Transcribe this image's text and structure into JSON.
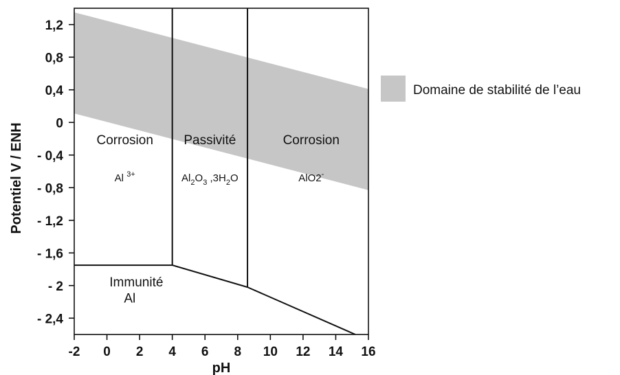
{
  "chart_data": {
    "type": "area",
    "xlabel": "pH",
    "ylabel": "Potentiel V / ENH",
    "xlim": [
      -2,
      16
    ],
    "ylim": [
      -2.6,
      1.4
    ],
    "x_ticks": [
      -2,
      0,
      2,
      4,
      6,
      8,
      10,
      12,
      14,
      16
    ],
    "x_tick_labels": [
      "-2",
      "0",
      "2",
      "4",
      "6",
      "8",
      "10",
      "12",
      "14",
      "16"
    ],
    "y_ticks": [
      1.2,
      0.8,
      0.4,
      0,
      -0.4,
      -0.8,
      -1.2,
      -1.6,
      -2,
      -2.4
    ],
    "y_tick_labels": [
      "1,2",
      "0,8",
      "0,4",
      "0",
      "- 0,4",
      "- 0,8",
      "- 1,2",
      "- 1,6",
      "- 2",
      "- 2,4"
    ],
    "water_band": {
      "upper": [
        [
          -2,
          1.35
        ],
        [
          16,
          0.41
        ]
      ],
      "lower": [
        [
          -2,
          0.11
        ],
        [
          16,
          -0.83
        ]
      ]
    },
    "boundaries": [
      {
        "from": [
          -2,
          -1.75
        ],
        "to": [
          4,
          -1.75
        ]
      },
      {
        "from": [
          4,
          -1.75
        ],
        "to": [
          8.6,
          -2.02
        ]
      },
      {
        "from": [
          8.6,
          -2.02
        ],
        "to": [
          15.2,
          -2.6
        ]
      },
      {
        "from": [
          4,
          -1.75
        ],
        "to": [
          4,
          1.4
        ]
      },
      {
        "from": [
          8.6,
          -2.02
        ],
        "to": [
          8.6,
          1.4
        ]
      }
    ],
    "regions": [
      {
        "name": "Corrosion",
        "species_base": "Al",
        "species_sup": "3+",
        "x": 1.1,
        "y": -0.21,
        "species_y": -0.67
      },
      {
        "name": "Passivité",
        "species": "Al2O3 ,3H2O",
        "x": 6.3,
        "y": -0.21,
        "species_y": -0.67
      },
      {
        "name": "Corrosion",
        "species_base": "AlO2",
        "species_sup": "-",
        "x": 12.5,
        "y": -0.21,
        "species_y": -0.67
      },
      {
        "name": "Immunité",
        "species": "Al",
        "x": 1.8,
        "y": -1.95,
        "species_y": -2.15
      }
    ],
    "legend": {
      "label": "Domaine de stabilité de l’eau",
      "position": "right",
      "color": "#c6c6c6"
    },
    "grid": false
  }
}
